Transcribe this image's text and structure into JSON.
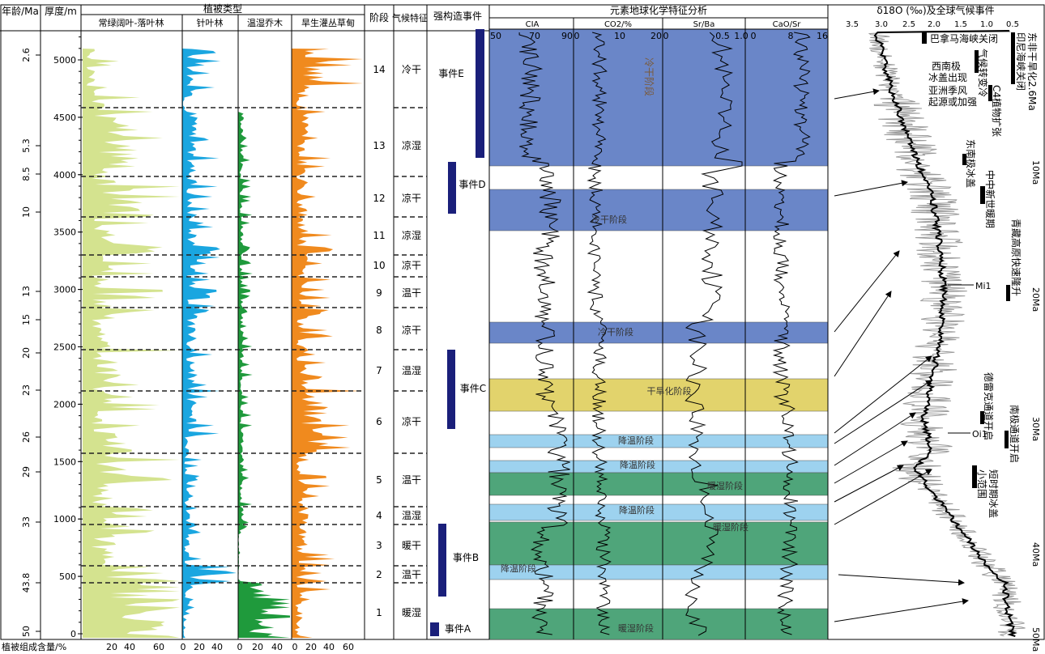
{
  "headers": {
    "age": "年龄/Ma",
    "depth": "厚度/m",
    "veg_type": "植被类型",
    "broadleaf": "常绿阔叶-落叶林",
    "conifer": "针叶林",
    "temperate": "温湿乔木",
    "shrub": "旱生灌丛草甸",
    "stage": "阶段",
    "climate": "气候特征",
    "tectonic": "强构造事件",
    "geochem": "元素地球化学特征分析",
    "cia": "CIA",
    "co2": "CO2/%",
    "srba": "Sr/Ba",
    "casr": "CaO/Sr",
    "isotope": "δ18O (‰)及全球气候事件",
    "bottom_label": "植被组成含量/%"
  },
  "age_ticks": [
    "2.6",
    "5.3",
    "8.5",
    "10",
    "13",
    "15",
    "20",
    "23",
    "26",
    "29",
    "33",
    "43.8",
    "50"
  ],
  "depth_ticks": [
    "5000",
    "4500",
    "4000",
    "3500",
    "3000",
    "2500",
    "2000",
    "1500",
    "1000",
    "500",
    "0"
  ],
  "veg_axis_ticks": {
    "broadleaf": [
      "0",
      "20",
      "40",
      "60"
    ],
    "conifer": [
      "0",
      "20",
      "40"
    ],
    "temperate": [
      "0",
      "20",
      "40"
    ],
    "shrub": [
      "0",
      "20",
      "40",
      "60"
    ]
  },
  "stages": [
    {
      "num": "14",
      "climate": "冷干"
    },
    {
      "num": "13",
      "climate": "凉湿"
    },
    {
      "num": "12",
      "climate": "凉干"
    },
    {
      "num": "11",
      "climate": "凉湿"
    },
    {
      "num": "10",
      "climate": "凉干"
    },
    {
      "num": "9",
      "climate": "温干"
    },
    {
      "num": "8",
      "climate": "凉干"
    },
    {
      "num": "7",
      "climate": "温湿"
    },
    {
      "num": "6",
      "climate": "凉干"
    },
    {
      "num": "5",
      "climate": "温干"
    },
    {
      "num": "4",
      "climate": "温湿"
    },
    {
      "num": "3",
      "climate": "暖干"
    },
    {
      "num": "2",
      "climate": "温干"
    },
    {
      "num": "1",
      "climate": "暖湿"
    }
  ],
  "events": [
    "事件E",
    "事件D",
    "事件C",
    "事件B",
    "事件A"
  ],
  "geo_axes": {
    "cia": [
      "50",
      "70",
      "90"
    ],
    "co2": [
      "0",
      "10",
      "20"
    ],
    "srba": [
      "0",
      "0.5",
      "1.0"
    ],
    "casr": [
      "0",
      "8",
      "16"
    ]
  },
  "phases": [
    "冷干阶段",
    "冷干阶段",
    "冷干阶段",
    "干旱化阶段",
    "降温阶段",
    "降温阶段",
    "暖湿阶段",
    "降温阶段",
    "暖湿阶段",
    "降温阶段",
    "暖湿阶段"
  ],
  "iso_axis": [
    "3.5",
    "3.0",
    "2.5",
    "2.0",
    "1.5",
    "1.0",
    "0.5"
  ],
  "iso_ma": [
    "10Ma",
    "20Ma",
    "30Ma",
    "40Ma",
    "50Ma"
  ],
  "global_events": [
    "巴拿马海峡关闭",
    "西南极冰盖出现",
    "气候转变冷",
    "亚洲季风起源或加强",
    "印尼海峡关闭东非干旱化2.6Ma",
    "C4植物扩张",
    "东南极冰盖",
    "中中新世暖期",
    "青藏高原快速隆升",
    "Mi1",
    "德雷克通道开启",
    "Oi1",
    "南极通道开启",
    "小范围短时期冰盖"
  ],
  "colors": {
    "broadleaf": "#d4e38f",
    "conifer": "#1aa6e0",
    "temperate": "#1f9a3c",
    "shrub": "#f08a1e",
    "cold_dry": "#6a86c8",
    "aridification": "#e2d36c",
    "cooling": "#9dd2ef",
    "warm_wet": "#4fa57a",
    "event_bar": "#1a1f7a",
    "iso_raw": "#9a9a9a"
  }
}
